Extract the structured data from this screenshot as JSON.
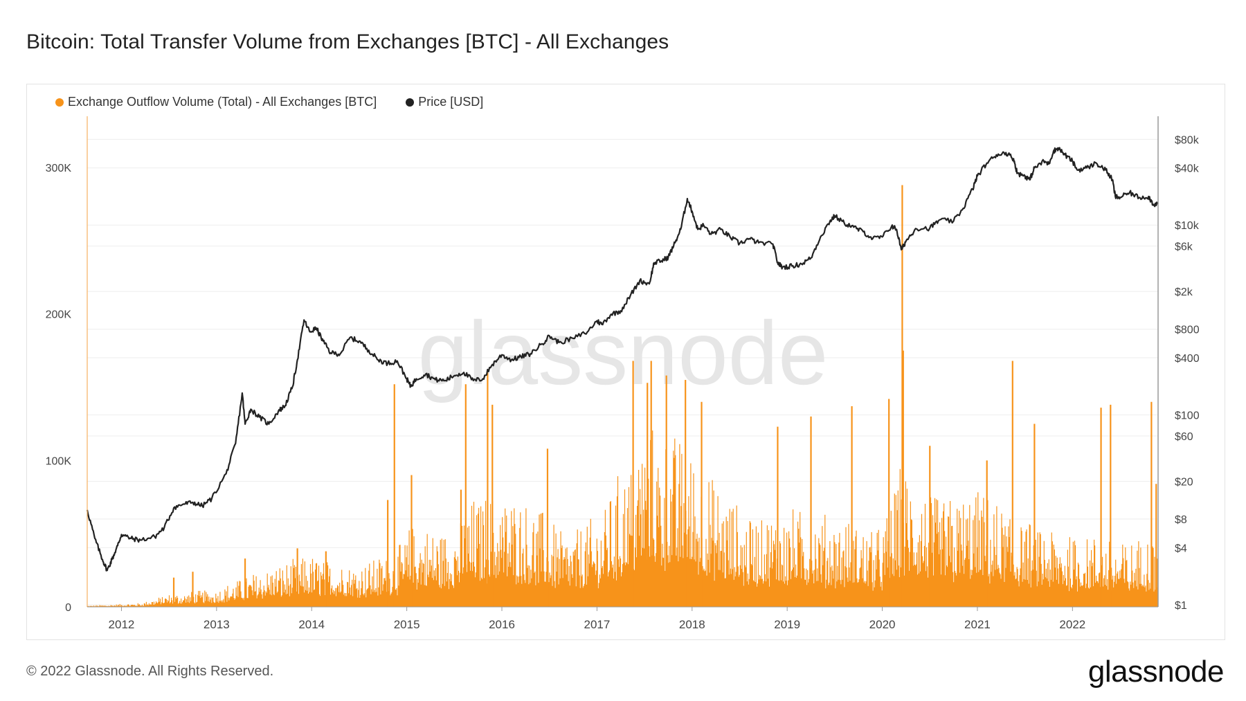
{
  "page": {
    "title": "Bitcoin: Total Transfer Volume from Exchanges [BTC] - All Exchanges",
    "copyright": "© 2022 Glassnode. All Rights Reserved.",
    "brand": "glassnode",
    "watermark": "glassnode"
  },
  "colors": {
    "outflow": "#f7931a",
    "price": "#222222",
    "grid": "#eeeeee",
    "axis": "#cccccc",
    "watermark": "#e6e6e6"
  },
  "chart_data": {
    "type": "bar+line",
    "legend": [
      {
        "name": "Exchange Outflow Volume (Total) - All Exchanges [BTC]",
        "color": "#f7931a"
      },
      {
        "name": "Price [USD]",
        "color": "#222222"
      }
    ],
    "x_ticks": [
      "2012",
      "2013",
      "2014",
      "2015",
      "2016",
      "2017",
      "2018",
      "2019",
      "2020",
      "2021",
      "2022"
    ],
    "x_range": [
      2011.64,
      2022.9
    ],
    "y_left": {
      "ticks": [
        0,
        100000,
        200000,
        300000
      ],
      "labels": [
        "0",
        "100K",
        "200K",
        "300K"
      ],
      "range": [
        0,
        335000
      ]
    },
    "y_right": {
      "scale": "log",
      "ticks": [
        1,
        4,
        8,
        20,
        60,
        100,
        400,
        800,
        2000,
        6000,
        10000,
        40000,
        80000
      ],
      "labels": [
        "$1",
        "$4",
        "$8",
        "$20",
        "$60",
        "$100",
        "$400",
        "$800",
        "$2k",
        "$6k",
        "$10k",
        "$40k",
        "$80k"
      ],
      "range": [
        0.95,
        140000
      ]
    },
    "series": [
      {
        "name": "Price [USD]",
        "kind": "line",
        "points": [
          [
            2011.64,
            10
          ],
          [
            2011.72,
            5
          ],
          [
            2011.8,
            3
          ],
          [
            2011.85,
            2.3
          ],
          [
            2011.9,
            3
          ],
          [
            2011.96,
            4.2
          ],
          [
            2012.0,
            5.5
          ],
          [
            2012.1,
            5
          ],
          [
            2012.2,
            4.8
          ],
          [
            2012.35,
            5.2
          ],
          [
            2012.45,
            6.5
          ],
          [
            2012.55,
            10.5
          ],
          [
            2012.65,
            11.5
          ],
          [
            2012.75,
            12
          ],
          [
            2012.85,
            11
          ],
          [
            2012.95,
            13.2
          ],
          [
            2013.1,
            24
          ],
          [
            2013.2,
            50
          ],
          [
            2013.27,
            170
          ],
          [
            2013.3,
            80
          ],
          [
            2013.36,
            115
          ],
          [
            2013.45,
            95
          ],
          [
            2013.55,
            80
          ],
          [
            2013.65,
            110
          ],
          [
            2013.72,
            125
          ],
          [
            2013.8,
            200
          ],
          [
            2013.85,
            380
          ],
          [
            2013.92,
            1000
          ],
          [
            2013.98,
            750
          ],
          [
            2014.05,
            820
          ],
          [
            2014.12,
            600
          ],
          [
            2014.2,
            450
          ],
          [
            2014.3,
            440
          ],
          [
            2014.4,
            650
          ],
          [
            2014.5,
            600
          ],
          [
            2014.6,
            480
          ],
          [
            2014.7,
            380
          ],
          [
            2014.8,
            350
          ],
          [
            2014.9,
            370
          ],
          [
            2015.0,
            240
          ],
          [
            2015.04,
            200
          ],
          [
            2015.1,
            240
          ],
          [
            2015.2,
            270
          ],
          [
            2015.3,
            235
          ],
          [
            2015.4,
            230
          ],
          [
            2015.5,
            260
          ],
          [
            2015.6,
            280
          ],
          [
            2015.7,
            230
          ],
          [
            2015.8,
            240
          ],
          [
            2015.9,
            340
          ],
          [
            2016.0,
            430
          ],
          [
            2016.1,
            380
          ],
          [
            2016.2,
            410
          ],
          [
            2016.3,
            440
          ],
          [
            2016.42,
            560
          ],
          [
            2016.5,
            680
          ],
          [
            2016.6,
            580
          ],
          [
            2016.75,
            640
          ],
          [
            2016.9,
            750
          ],
          [
            2017.0,
            980
          ],
          [
            2017.05,
            900
          ],
          [
            2017.15,
            1150
          ],
          [
            2017.25,
            1250
          ],
          [
            2017.35,
            1800
          ],
          [
            2017.45,
            2600
          ],
          [
            2017.55,
            2400
          ],
          [
            2017.6,
            4000
          ],
          [
            2017.68,
            4200
          ],
          [
            2017.75,
            4600
          ],
          [
            2017.82,
            6500
          ],
          [
            2017.88,
            9000
          ],
          [
            2017.95,
            19000
          ],
          [
            2018.0,
            14000
          ],
          [
            2018.06,
            9000
          ],
          [
            2018.12,
            10000
          ],
          [
            2018.2,
            8000
          ],
          [
            2018.3,
            9000
          ],
          [
            2018.4,
            7500
          ],
          [
            2018.5,
            6400
          ],
          [
            2018.6,
            7200
          ],
          [
            2018.7,
            6500
          ],
          [
            2018.85,
            6300
          ],
          [
            2018.9,
            4000
          ],
          [
            2018.95,
            3600
          ],
          [
            2019.05,
            3700
          ],
          [
            2019.15,
            3900
          ],
          [
            2019.25,
            4500
          ],
          [
            2019.35,
            7500
          ],
          [
            2019.45,
            11000
          ],
          [
            2019.5,
            12500
          ],
          [
            2019.6,
            10500
          ],
          [
            2019.7,
            9500
          ],
          [
            2019.8,
            8500
          ],
          [
            2019.9,
            7200
          ],
          [
            2020.0,
            7500
          ],
          [
            2020.1,
            9800
          ],
          [
            2020.15,
            9000
          ],
          [
            2020.2,
            5500
          ],
          [
            2020.25,
            6800
          ],
          [
            2020.35,
            9200
          ],
          [
            2020.5,
            9300
          ],
          [
            2020.6,
            11300
          ],
          [
            2020.75,
            11000
          ],
          [
            2020.85,
            15000
          ],
          [
            2020.95,
            24000
          ],
          [
            2021.0,
            33000
          ],
          [
            2021.1,
            45000
          ],
          [
            2021.2,
            55000
          ],
          [
            2021.3,
            58000
          ],
          [
            2021.38,
            50000
          ],
          [
            2021.42,
            35000
          ],
          [
            2021.5,
            33000
          ],
          [
            2021.55,
            30000
          ],
          [
            2021.6,
            40000
          ],
          [
            2021.7,
            47000
          ],
          [
            2021.75,
            44000
          ],
          [
            2021.8,
            60000
          ],
          [
            2021.85,
            65000
          ],
          [
            2021.92,
            55000
          ],
          [
            2022.0,
            47000
          ],
          [
            2022.05,
            38000
          ],
          [
            2022.15,
            40000
          ],
          [
            2022.25,
            45000
          ],
          [
            2022.35,
            38000
          ],
          [
            2022.42,
            30000
          ],
          [
            2022.45,
            20000
          ],
          [
            2022.5,
            19500
          ],
          [
            2022.6,
            22000
          ],
          [
            2022.7,
            19500
          ],
          [
            2022.8,
            20000
          ],
          [
            2022.85,
            16500
          ],
          [
            2022.9,
            16800
          ]
        ]
      },
      {
        "name": "Exchange Outflow Volume (Total) - All Exchanges [BTC]",
        "kind": "bars",
        "baseline_anchors": [
          [
            2011.64,
            500
          ],
          [
            2012.2,
            1500
          ],
          [
            2012.5,
            5000
          ],
          [
            2013.0,
            7000
          ],
          [
            2013.5,
            15000
          ],
          [
            2014.0,
            20000
          ],
          [
            2014.5,
            17000
          ],
          [
            2014.9,
            22000
          ],
          [
            2015.05,
            32000
          ],
          [
            2015.4,
            30000
          ],
          [
            2015.7,
            42000
          ],
          [
            2016.0,
            45000
          ],
          [
            2016.4,
            38000
          ],
          [
            2016.7,
            28000
          ],
          [
            2017.0,
            35000
          ],
          [
            2017.5,
            70000
          ],
          [
            2017.9,
            65000
          ],
          [
            2018.2,
            50000
          ],
          [
            2018.6,
            35000
          ],
          [
            2019.0,
            38000
          ],
          [
            2019.5,
            35000
          ],
          [
            2020.0,
            30000
          ],
          [
            2020.2,
            55000
          ],
          [
            2020.6,
            42000
          ],
          [
            2021.0,
            45000
          ],
          [
            2021.4,
            35000
          ],
          [
            2021.8,
            30000
          ],
          [
            2022.2,
            28000
          ],
          [
            2022.6,
            25000
          ],
          [
            2022.9,
            30000
          ]
        ],
        "spikes": [
          [
            2012.55,
            20000
          ],
          [
            2012.75,
            24000
          ],
          [
            2013.3,
            33000
          ],
          [
            2013.85,
            40000
          ],
          [
            2014.15,
            38000
          ],
          [
            2014.8,
            73000
          ],
          [
            2014.87,
            152000
          ],
          [
            2015.05,
            90000
          ],
          [
            2015.57,
            80000
          ],
          [
            2015.62,
            152000
          ],
          [
            2015.85,
            160000
          ],
          [
            2015.9,
            138000
          ],
          [
            2016.48,
            108000
          ],
          [
            2017.38,
            168000
          ],
          [
            2017.53,
            153000
          ],
          [
            2017.57,
            168000
          ],
          [
            2017.73,
            158000
          ],
          [
            2017.93,
            155000
          ],
          [
            2018.1,
            140000
          ],
          [
            2018.9,
            123000
          ],
          [
            2019.25,
            130000
          ],
          [
            2019.68,
            137000
          ],
          [
            2020.07,
            142000
          ],
          [
            2020.21,
            288000
          ],
          [
            2020.22,
            175000
          ],
          [
            2020.5,
            110000
          ],
          [
            2021.1,
            100000
          ],
          [
            2021.37,
            168000
          ],
          [
            2021.6,
            125000
          ],
          [
            2022.3,
            136000
          ],
          [
            2022.4,
            138000
          ],
          [
            2022.83,
            140000
          ],
          [
            2022.88,
            84000
          ]
        ]
      }
    ]
  }
}
